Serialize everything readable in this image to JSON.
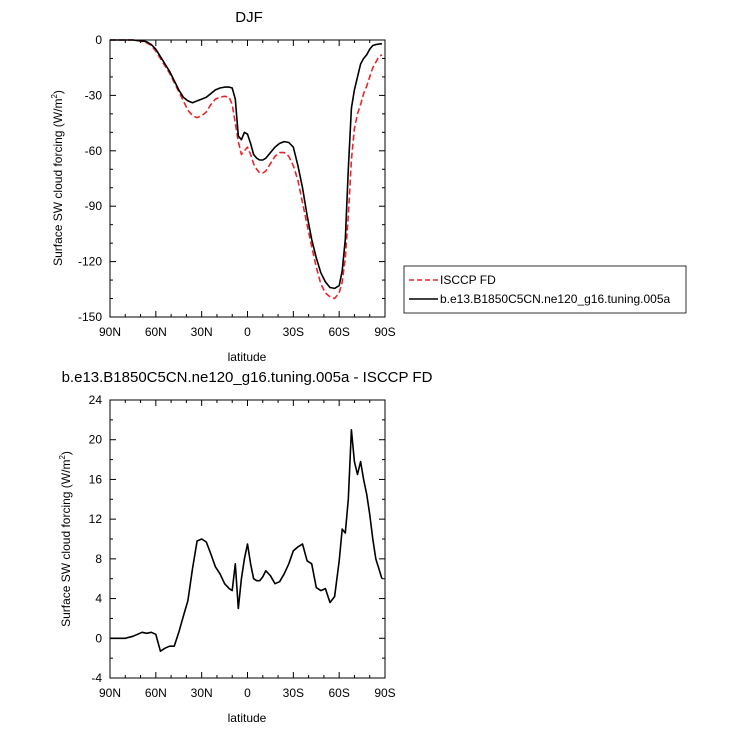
{
  "chart_data": [
    {
      "type": "line",
      "title": "DJF",
      "xlabel": "latitude",
      "ylabel": "Surface SW cloud forcing (W/m",
      "ylabel_sup": "2",
      "ylabel_end": ")",
      "xlim": [
        90,
        -90
      ],
      "ylim": [
        -150,
        0
      ],
      "x_ticks": [
        90,
        60,
        30,
        0,
        -30,
        -60,
        -90
      ],
      "x_tick_labels": [
        "90N",
        "60N",
        "30N",
        "0",
        "30S",
        "60S",
        "90S"
      ],
      "y_ticks": [
        0,
        -30,
        -60,
        -90,
        -120,
        -150
      ],
      "y_tick_labels": [
        "0",
        "-30",
        "-60",
        "-90",
        "-120",
        "-150"
      ],
      "legend": {
        "entries": [
          "ISCCP FD",
          "b.e13.B1850C5CN.ne120_g16.tuning.005a"
        ]
      },
      "series": [
        {
          "name": "ISCCP FD",
          "color": "#e8262a",
          "dash": true,
          "x": [
            90,
            85,
            80,
            75,
            72,
            69,
            66,
            63,
            60,
            57,
            54,
            51,
            48,
            45,
            42,
            39,
            36,
            33,
            30,
            27,
            24,
            21,
            18,
            15,
            12,
            10,
            8,
            6,
            4,
            2,
            0,
            -2,
            -4,
            -6,
            -8,
            -10,
            -12,
            -15,
            -18,
            -21,
            -24,
            -27,
            -30,
            -33,
            -36,
            -39,
            -42,
            -45,
            -48,
            -51,
            -54,
            -57,
            -60,
            -62,
            -64,
            -66,
            -68,
            -70,
            -72,
            -74,
            -76,
            -78,
            -80,
            -82,
            -84,
            -86,
            -88
          ],
          "y": [
            0,
            0,
            0,
            0,
            -0.3,
            -0.8,
            -1.5,
            -3,
            -6,
            -10,
            -14,
            -18,
            -23,
            -28,
            -33,
            -38,
            -41,
            -42,
            -41,
            -39,
            -35,
            -32,
            -31,
            -30.5,
            -31,
            -35,
            -45,
            -55,
            -62,
            -60,
            -58,
            -62,
            -67,
            -70,
            -72,
            -72,
            -71,
            -67,
            -63,
            -61,
            -61,
            -63,
            -68,
            -76,
            -88,
            -100,
            -112,
            -123,
            -132,
            -137,
            -139,
            -140,
            -137,
            -131,
            -118,
            -95,
            -65,
            -48,
            -40,
            -35,
            -29,
            -25,
            -20,
            -15,
            -12,
            -9,
            -8
          ]
        },
        {
          "name": "b.e13.B1850C5CN.ne120_g16.tuning.005a",
          "color": "#000000",
          "dash": false,
          "x": [
            90,
            85,
            80,
            75,
            72,
            69,
            66,
            63,
            60,
            57,
            54,
            51,
            48,
            45,
            42,
            39,
            36,
            33,
            30,
            27,
            24,
            21,
            18,
            15,
            12,
            10,
            8,
            6,
            4,
            2,
            0,
            -2,
            -4,
            -6,
            -8,
            -10,
            -12,
            -15,
            -18,
            -21,
            -24,
            -27,
            -30,
            -33,
            -36,
            -39,
            -42,
            -45,
            -48,
            -51,
            -54,
            -57,
            -60,
            -62,
            -64,
            -66,
            -68,
            -70,
            -72,
            -74,
            -76,
            -78,
            -80,
            -82,
            -84,
            -86,
            -88
          ],
          "y": [
            0,
            0,
            0,
            0,
            -0.3,
            -0.5,
            -1,
            -2.5,
            -5,
            -9,
            -13,
            -17,
            -22,
            -27,
            -31,
            -33,
            -34,
            -33,
            -32,
            -31,
            -29,
            -27,
            -26,
            -25.5,
            -25.5,
            -26,
            -32,
            -52,
            -54,
            -50,
            -51,
            -56,
            -62,
            -64,
            -65,
            -65,
            -64,
            -61,
            -58,
            -56,
            -55,
            -55.5,
            -58,
            -68,
            -80,
            -95,
            -108,
            -118,
            -126,
            -131,
            -134,
            -134.5,
            -133,
            -125,
            -108,
            -70,
            -37,
            -27,
            -20,
            -13,
            -10,
            -8,
            -5,
            -3,
            -2.5,
            -2.2,
            -2
          ]
        }
      ]
    },
    {
      "type": "line",
      "title": "b.e13.B1850C5CN.ne120_g16.tuning.005a - ISCCP FD",
      "xlabel": "latitude",
      "ylabel": "Surface SW cloud forcing (W/m",
      "ylabel_sup": "2",
      "ylabel_end": ")",
      "xlim": [
        90,
        -90
      ],
      "ylim": [
        -4,
        24
      ],
      "x_ticks": [
        90,
        60,
        30,
        0,
        -30,
        -60,
        -90
      ],
      "x_tick_labels": [
        "90N",
        "60N",
        "30N",
        "0",
        "30S",
        "60S",
        "90S"
      ],
      "y_ticks": [
        24,
        20,
        16,
        12,
        8,
        4,
        0,
        -4
      ],
      "y_tick_labels": [
        "24",
        "20",
        "16",
        "12",
        "8",
        "4",
        "0",
        "-4"
      ],
      "series": [
        {
          "color": "#000000",
          "dash": false,
          "x": [
            90,
            85,
            80,
            75,
            72,
            69,
            66,
            63,
            60,
            57,
            54,
            51,
            48,
            45,
            42,
            39,
            36,
            33,
            30,
            27,
            24,
            21,
            18,
            15,
            12,
            10,
            8,
            6,
            4,
            2,
            0,
            -2,
            -4,
            -6,
            -8,
            -10,
            -12,
            -15,
            -18,
            -21,
            -24,
            -27,
            -30,
            -33,
            -36,
            -39,
            -42,
            -45,
            -48,
            -51,
            -54,
            -57,
            -60,
            -62,
            -64,
            -66,
            -68,
            -70,
            -72,
            -74,
            -76,
            -78,
            -80,
            -82,
            -84,
            -86,
            -88
          ],
          "y": [
            0,
            0,
            0,
            0.2,
            0.4,
            0.6,
            0.5,
            0.6,
            0.4,
            -1.3,
            -1.0,
            -0.8,
            -0.8,
            0.6,
            2.2,
            3.8,
            7.0,
            9.8,
            10.0,
            9.7,
            8.5,
            7.2,
            6.5,
            5.5,
            5.0,
            4.8,
            7.5,
            3.0,
            6.0,
            8.0,
            9.5,
            7.5,
            6.0,
            5.8,
            5.8,
            6.2,
            6.8,
            6.3,
            5.5,
            5.7,
            6.5,
            7.5,
            8.8,
            9.2,
            9.5,
            7.8,
            7.5,
            5.1,
            4.8,
            5.0,
            3.6,
            4.2,
            7.8,
            11.0,
            10.6,
            14.0,
            21.0,
            17.8,
            16.5,
            17.8,
            16.0,
            14.5,
            12.5,
            10.0,
            8.0,
            7.0,
            6.0
          ]
        }
      ]
    }
  ]
}
